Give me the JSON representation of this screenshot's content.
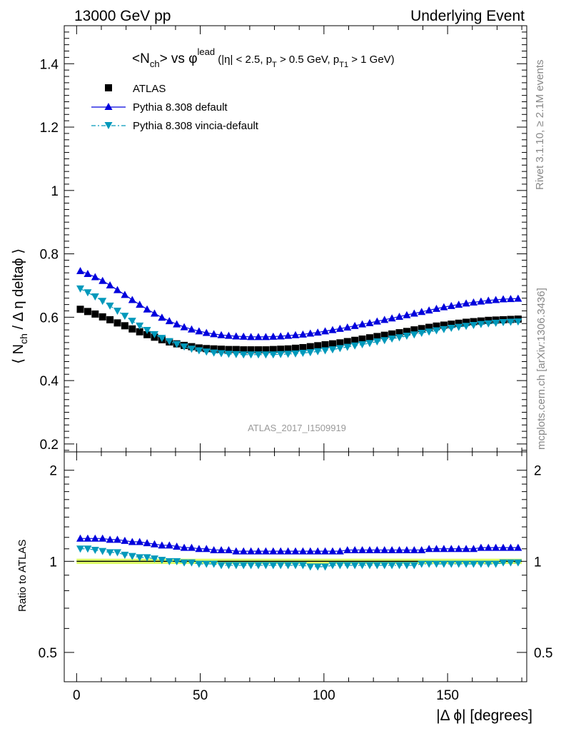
{
  "header": {
    "left": "13000 GeV pp",
    "right": "Underlying Event"
  },
  "side_labels": {
    "rivet": "Rivet 3.1.10, ≥ 2.1M events",
    "mcplots": "mcplots.cern.ch [arXiv:1306.3436]"
  },
  "analysis_label": "ATLAS_2017_I1509919",
  "colors": {
    "atlas": "#000000",
    "default": "#0000dd",
    "vincia": "#0099bb",
    "band": "#ddff66"
  },
  "chart_data": {
    "type": "scatter",
    "title": "<Nch> vs φlead (|η| < 2.5, pT > 0.5 GeV, pT1 > 1 GeV)",
    "title_parts": {
      "a": "<N",
      "b": "ch",
      "c": "> vs φ",
      "d": "lead",
      "e": " (|η| < 2.5, p",
      "f": "T",
      "g": " > 0.5 GeV, p",
      "h": "T1",
      "i": " > 1 GeV)"
    },
    "ylabel_parts": {
      "a": "⟨ N",
      "b": "ch",
      "c": " / Δ η deltaϕ ⟩"
    },
    "xlabel": "|Δ ϕ| [degrees]",
    "ratio_ylabel": "Ratio to ATLAS",
    "xlim": [
      -5,
      182
    ],
    "ylim": [
      0.175,
      1.52
    ],
    "ratio_ylim": [
      0.4,
      2.3
    ],
    "x_ticks": [
      0,
      50,
      100,
      150
    ],
    "x_tick_labels": [
      "0",
      "50",
      "100",
      "150"
    ],
    "y_ticks": [
      0.2,
      0.4,
      0.6,
      0.8,
      1.0,
      1.2,
      1.4
    ],
    "y_tick_labels": [
      "0.2",
      "0.4",
      "0.6",
      "0.8",
      "1",
      "1.2",
      "1.4"
    ],
    "ratio_ticks": [
      0.5,
      1,
      2
    ],
    "ratio_tick_labels": [
      "0.5",
      "1",
      "2"
    ],
    "legend_position": "top-left",
    "grid": false,
    "x": [
      1.5,
      4.5,
      7.5,
      10.5,
      13.5,
      16.5,
      19.5,
      22.5,
      25.5,
      28.5,
      31.5,
      34.5,
      37.5,
      40.5,
      43.5,
      46.5,
      49.5,
      52.5,
      55.5,
      58.5,
      61.5,
      64.5,
      67.5,
      70.5,
      73.5,
      76.5,
      79.5,
      82.5,
      85.5,
      88.5,
      91.5,
      94.5,
      97.5,
      100.5,
      103.5,
      106.5,
      109.5,
      112.5,
      115.5,
      118.5,
      121.5,
      124.5,
      127.5,
      130.5,
      133.5,
      136.5,
      139.5,
      142.5,
      145.5,
      148.5,
      151.5,
      154.5,
      157.5,
      160.5,
      163.5,
      166.5,
      169.5,
      172.5,
      175.5,
      178.5
    ],
    "series": [
      {
        "name": "ATLAS",
        "marker": "square",
        "values": [
          0.625,
          0.618,
          0.61,
          0.601,
          0.592,
          0.582,
          0.573,
          0.563,
          0.554,
          0.545,
          0.537,
          0.529,
          0.522,
          0.516,
          0.511,
          0.507,
          0.503,
          0.501,
          0.5,
          0.499,
          0.498,
          0.498,
          0.497,
          0.497,
          0.497,
          0.497,
          0.498,
          0.499,
          0.5,
          0.502,
          0.504,
          0.507,
          0.51,
          0.513,
          0.516,
          0.519,
          0.523,
          0.527,
          0.531,
          0.535,
          0.539,
          0.543,
          0.547,
          0.551,
          0.555,
          0.56,
          0.564,
          0.568,
          0.572,
          0.575,
          0.578,
          0.581,
          0.584,
          0.586,
          0.588,
          0.59,
          0.591,
          0.592,
          0.593,
          0.594
        ],
        "ratio": [
          1,
          1,
          1,
          1,
          1,
          1,
          1,
          1,
          1,
          1,
          1,
          1,
          1,
          1,
          1,
          1,
          1,
          1,
          1,
          1,
          1,
          1,
          1,
          1,
          1,
          1,
          1,
          1,
          1,
          1,
          1,
          1,
          1,
          1,
          1,
          1,
          1,
          1,
          1,
          1,
          1,
          1,
          1,
          1,
          1,
          1,
          1,
          1,
          1,
          1,
          1,
          1,
          1,
          1,
          1,
          1,
          1,
          1,
          1,
          1
        ]
      },
      {
        "name": "Pythia 8.308 default",
        "marker": "triangle-up",
        "values": [
          0.746,
          0.737,
          0.727,
          0.715,
          0.701,
          0.686,
          0.671,
          0.655,
          0.64,
          0.625,
          0.612,
          0.599,
          0.588,
          0.578,
          0.569,
          0.562,
          0.556,
          0.551,
          0.547,
          0.544,
          0.542,
          0.54,
          0.539,
          0.538,
          0.538,
          0.538,
          0.539,
          0.54,
          0.542,
          0.544,
          0.546,
          0.549,
          0.552,
          0.556,
          0.56,
          0.564,
          0.568,
          0.573,
          0.578,
          0.582,
          0.587,
          0.592,
          0.597,
          0.602,
          0.607,
          0.612,
          0.617,
          0.622,
          0.627,
          0.632,
          0.636,
          0.64,
          0.644,
          0.647,
          0.65,
          0.653,
          0.655,
          0.657,
          0.658,
          0.659
        ],
        "ratio": [
          1.19,
          1.19,
          1.19,
          1.19,
          1.18,
          1.18,
          1.17,
          1.16,
          1.16,
          1.15,
          1.14,
          1.13,
          1.13,
          1.12,
          1.11,
          1.11,
          1.1,
          1.1,
          1.09,
          1.09,
          1.09,
          1.08,
          1.08,
          1.08,
          1.08,
          1.08,
          1.08,
          1.08,
          1.08,
          1.08,
          1.08,
          1.08,
          1.08,
          1.08,
          1.08,
          1.08,
          1.09,
          1.09,
          1.09,
          1.09,
          1.09,
          1.09,
          1.09,
          1.09,
          1.09,
          1.09,
          1.09,
          1.1,
          1.1,
          1.1,
          1.1,
          1.1,
          1.1,
          1.1,
          1.11,
          1.11,
          1.11,
          1.11,
          1.11,
          1.11
        ]
      },
      {
        "name": "Pythia 8.308 vincia-default",
        "marker": "triangle-down",
        "values": [
          0.69,
          0.678,
          0.665,
          0.651,
          0.636,
          0.62,
          0.604,
          0.588,
          0.573,
          0.559,
          0.546,
          0.534,
          0.524,
          0.515,
          0.507,
          0.5,
          0.495,
          0.491,
          0.488,
          0.486,
          0.484,
          0.483,
          0.482,
          0.482,
          0.482,
          0.482,
          0.482,
          0.483,
          0.484,
          0.485,
          0.487,
          0.489,
          0.492,
          0.495,
          0.498,
          0.502,
          0.506,
          0.51,
          0.514,
          0.518,
          0.523,
          0.527,
          0.532,
          0.536,
          0.541,
          0.545,
          0.55,
          0.554,
          0.558,
          0.562,
          0.566,
          0.569,
          0.572,
          0.575,
          0.578,
          0.58,
          0.582,
          0.584,
          0.585,
          0.586
        ],
        "ratio": [
          1.1,
          1.1,
          1.09,
          1.08,
          1.07,
          1.07,
          1.05,
          1.04,
          1.03,
          1.03,
          1.02,
          1.01,
          1.0,
          1.0,
          0.99,
          0.99,
          0.98,
          0.98,
          0.98,
          0.97,
          0.97,
          0.97,
          0.97,
          0.97,
          0.97,
          0.97,
          0.97,
          0.97,
          0.97,
          0.97,
          0.97,
          0.96,
          0.96,
          0.96,
          0.97,
          0.97,
          0.97,
          0.97,
          0.97,
          0.97,
          0.97,
          0.97,
          0.97,
          0.97,
          0.97,
          0.97,
          0.98,
          0.98,
          0.98,
          0.98,
          0.98,
          0.98,
          0.98,
          0.98,
          0.98,
          0.98,
          0.98,
          0.99,
          0.99,
          0.99
        ]
      }
    ]
  }
}
